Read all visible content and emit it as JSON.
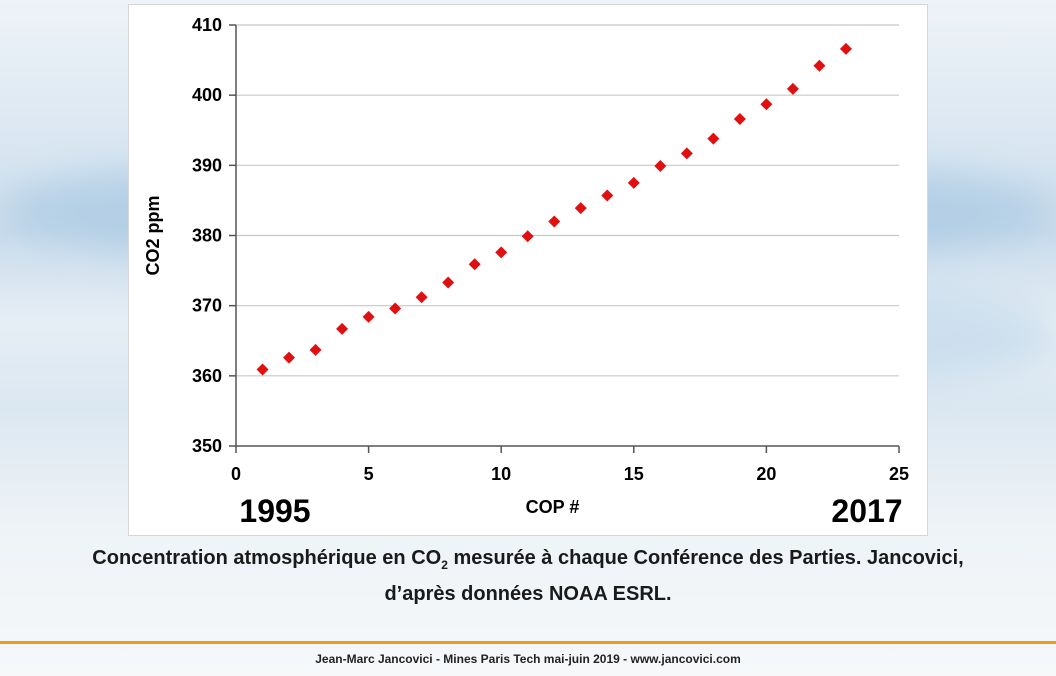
{
  "chart_data": {
    "type": "scatter",
    "marker": "diamond",
    "marker_color": "#e01010",
    "x": [
      1,
      2,
      3,
      4,
      5,
      6,
      7,
      8,
      9,
      10,
      11,
      12,
      13,
      14,
      15,
      16,
      17,
      18,
      19,
      20,
      21,
      22,
      23
    ],
    "y": [
      360.9,
      362.6,
      363.7,
      366.7,
      368.4,
      369.6,
      371.2,
      373.3,
      375.9,
      377.6,
      379.9,
      382.0,
      383.9,
      385.7,
      387.5,
      389.9,
      391.7,
      393.8,
      396.6,
      398.7,
      400.9,
      404.2,
      406.6
    ],
    "xlabel": "COP #",
    "ylabel": "CO2 ppm",
    "xlim": [
      0,
      25
    ],
    "ylim": [
      350,
      410
    ],
    "xticks": [
      0,
      5,
      10,
      15,
      20,
      25
    ],
    "yticks": [
      350,
      360,
      370,
      380,
      390,
      400,
      410
    ],
    "grid": "horizontal",
    "annotations": {
      "start_year": "1995",
      "end_year": "2017"
    }
  },
  "caption": {
    "line1_before": "Concentration atmosphérique en CO",
    "line1_sub": "2",
    "line1_after": " mesurée à chaque Conférence des Parties. Jancovici,",
    "line2": "d’après données NOAA ESRL."
  },
  "footer": {
    "text": "Jean-Marc Jancovici - Mines Paris Tech mai-juin 2019 - www.jancovici.com"
  },
  "colors": {
    "accent_rule": "#f39c12",
    "marker": "#e01010",
    "gridline": "#c8c8c8"
  }
}
